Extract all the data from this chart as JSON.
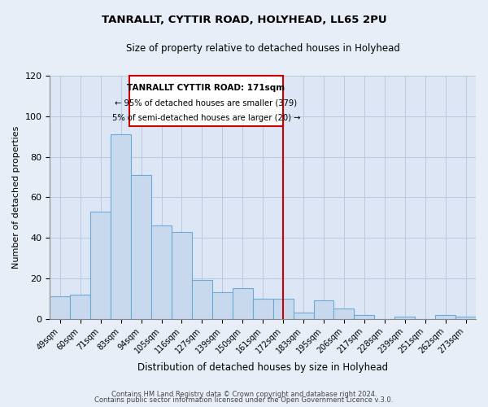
{
  "title": "TANRALLT, CYTTIR ROAD, HOLYHEAD, LL65 2PU",
  "subtitle": "Size of property relative to detached houses in Holyhead",
  "xlabel": "Distribution of detached houses by size in Holyhead",
  "ylabel": "Number of detached properties",
  "bar_labels": [
    "49sqm",
    "60sqm",
    "71sqm",
    "83sqm",
    "94sqm",
    "105sqm",
    "116sqm",
    "127sqm",
    "139sqm",
    "150sqm",
    "161sqm",
    "172sqm",
    "183sqm",
    "195sqm",
    "206sqm",
    "217sqm",
    "228sqm",
    "239sqm",
    "251sqm",
    "262sqm",
    "273sqm"
  ],
  "bar_values": [
    11,
    12,
    53,
    91,
    71,
    46,
    43,
    19,
    13,
    15,
    10,
    10,
    3,
    9,
    5,
    2,
    0,
    1,
    0,
    2,
    1
  ],
  "bar_color": "#c8d9ee",
  "bar_edge_color": "#6aaad4",
  "ylim": [
    0,
    120
  ],
  "yticks": [
    0,
    20,
    40,
    60,
    80,
    100,
    120
  ],
  "vline_x_index": 11,
  "vline_color": "#cc0000",
  "annotation_title": "TANRALLT CYTTIR ROAD: 171sqm",
  "annotation_line1": "← 95% of detached houses are smaller (379)",
  "annotation_line2": "5% of semi-detached houses are larger (20) →",
  "footer1": "Contains HM Land Registry data © Crown copyright and database right 2024.",
  "footer2": "Contains public sector information licensed under the Open Government Licence v.3.0.",
  "background_color": "#e8eef7",
  "plot_bg_color": "#dce6f5"
}
